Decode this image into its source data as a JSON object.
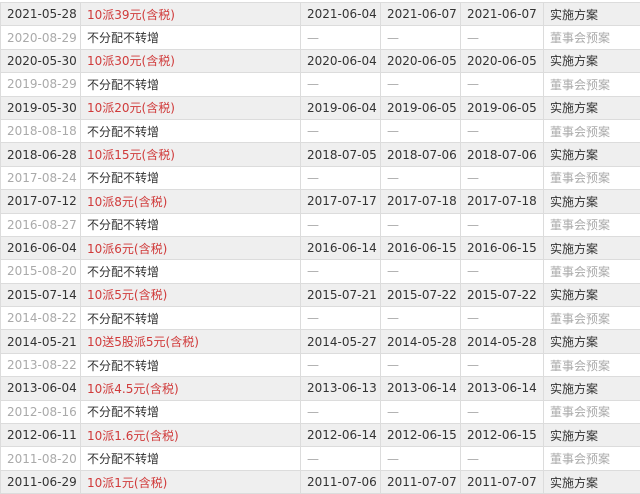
{
  "colors": {
    "accent_red": "#d03a3a",
    "muted": "#aaaaaa",
    "row_shade": "#efefef"
  },
  "rows": [
    {
      "date": "2021-05-28",
      "plan": "10派39元(含税)",
      "d1": "2021-06-04",
      "d2": "2021-06-07",
      "d3": "2021-06-07",
      "status": "实施方案"
    },
    {
      "date": "2020-08-29",
      "plan": "不分配不转增",
      "d1": "—",
      "d2": "—",
      "d3": "—",
      "status": "董事会预案"
    },
    {
      "date": "2020-05-30",
      "plan": "10派30元(含税)",
      "d1": "2020-06-04",
      "d2": "2020-06-05",
      "d3": "2020-06-05",
      "status": "实施方案"
    },
    {
      "date": "2019-08-29",
      "plan": "不分配不转增",
      "d1": "—",
      "d2": "—",
      "d3": "—",
      "status": "董事会预案"
    },
    {
      "date": "2019-05-30",
      "plan": "10派20元(含税)",
      "d1": "2019-06-04",
      "d2": "2019-06-05",
      "d3": "2019-06-05",
      "status": "实施方案"
    },
    {
      "date": "2018-08-18",
      "plan": "不分配不转增",
      "d1": "—",
      "d2": "—",
      "d3": "—",
      "status": "董事会预案"
    },
    {
      "date": "2018-06-28",
      "plan": "10派15元(含税)",
      "d1": "2018-07-05",
      "d2": "2018-07-06",
      "d3": "2018-07-06",
      "status": "实施方案"
    },
    {
      "date": "2017-08-24",
      "plan": "不分配不转增",
      "d1": "—",
      "d2": "—",
      "d3": "—",
      "status": "董事会预案"
    },
    {
      "date": "2017-07-12",
      "plan": "10派8元(含税)",
      "d1": "2017-07-17",
      "d2": "2017-07-18",
      "d3": "2017-07-18",
      "status": "实施方案"
    },
    {
      "date": "2016-08-27",
      "plan": "不分配不转增",
      "d1": "—",
      "d2": "—",
      "d3": "—",
      "status": "董事会预案"
    },
    {
      "date": "2016-06-04",
      "plan": "10派6元(含税)",
      "d1": "2016-06-14",
      "d2": "2016-06-15",
      "d3": "2016-06-15",
      "status": "实施方案"
    },
    {
      "date": "2015-08-20",
      "plan": "不分配不转增",
      "d1": "—",
      "d2": "—",
      "d3": "—",
      "status": "董事会预案"
    },
    {
      "date": "2015-07-14",
      "plan": "10派5元(含税)",
      "d1": "2015-07-21",
      "d2": "2015-07-22",
      "d3": "2015-07-22",
      "status": "实施方案"
    },
    {
      "date": "2014-08-22",
      "plan": "不分配不转增",
      "d1": "—",
      "d2": "—",
      "d3": "—",
      "status": "董事会预案"
    },
    {
      "date": "2014-05-21",
      "plan": "10送5股派5元(含税)",
      "d1": "2014-05-27",
      "d2": "2014-05-28",
      "d3": "2014-05-28",
      "status": "实施方案"
    },
    {
      "date": "2013-08-22",
      "plan": "不分配不转增",
      "d1": "—",
      "d2": "—",
      "d3": "—",
      "status": "董事会预案"
    },
    {
      "date": "2013-06-04",
      "plan": "10派4.5元(含税)",
      "d1": "2013-06-13",
      "d2": "2013-06-14",
      "d3": "2013-06-14",
      "status": "实施方案"
    },
    {
      "date": "2012-08-16",
      "plan": "不分配不转增",
      "d1": "—",
      "d2": "—",
      "d3": "—",
      "status": "董事会预案"
    },
    {
      "date": "2012-06-11",
      "plan": "10派1.6元(含税)",
      "d1": "2012-06-14",
      "d2": "2012-06-15",
      "d3": "2012-06-15",
      "status": "实施方案"
    },
    {
      "date": "2011-08-20",
      "plan": "不分配不转增",
      "d1": "—",
      "d2": "—",
      "d3": "—",
      "status": "董事会预案"
    },
    {
      "date": "2011-06-29",
      "plan": "10派1元(含税)",
      "d1": "2011-07-06",
      "d2": "2011-07-07",
      "d3": "2011-07-07",
      "status": "实施方案"
    }
  ]
}
